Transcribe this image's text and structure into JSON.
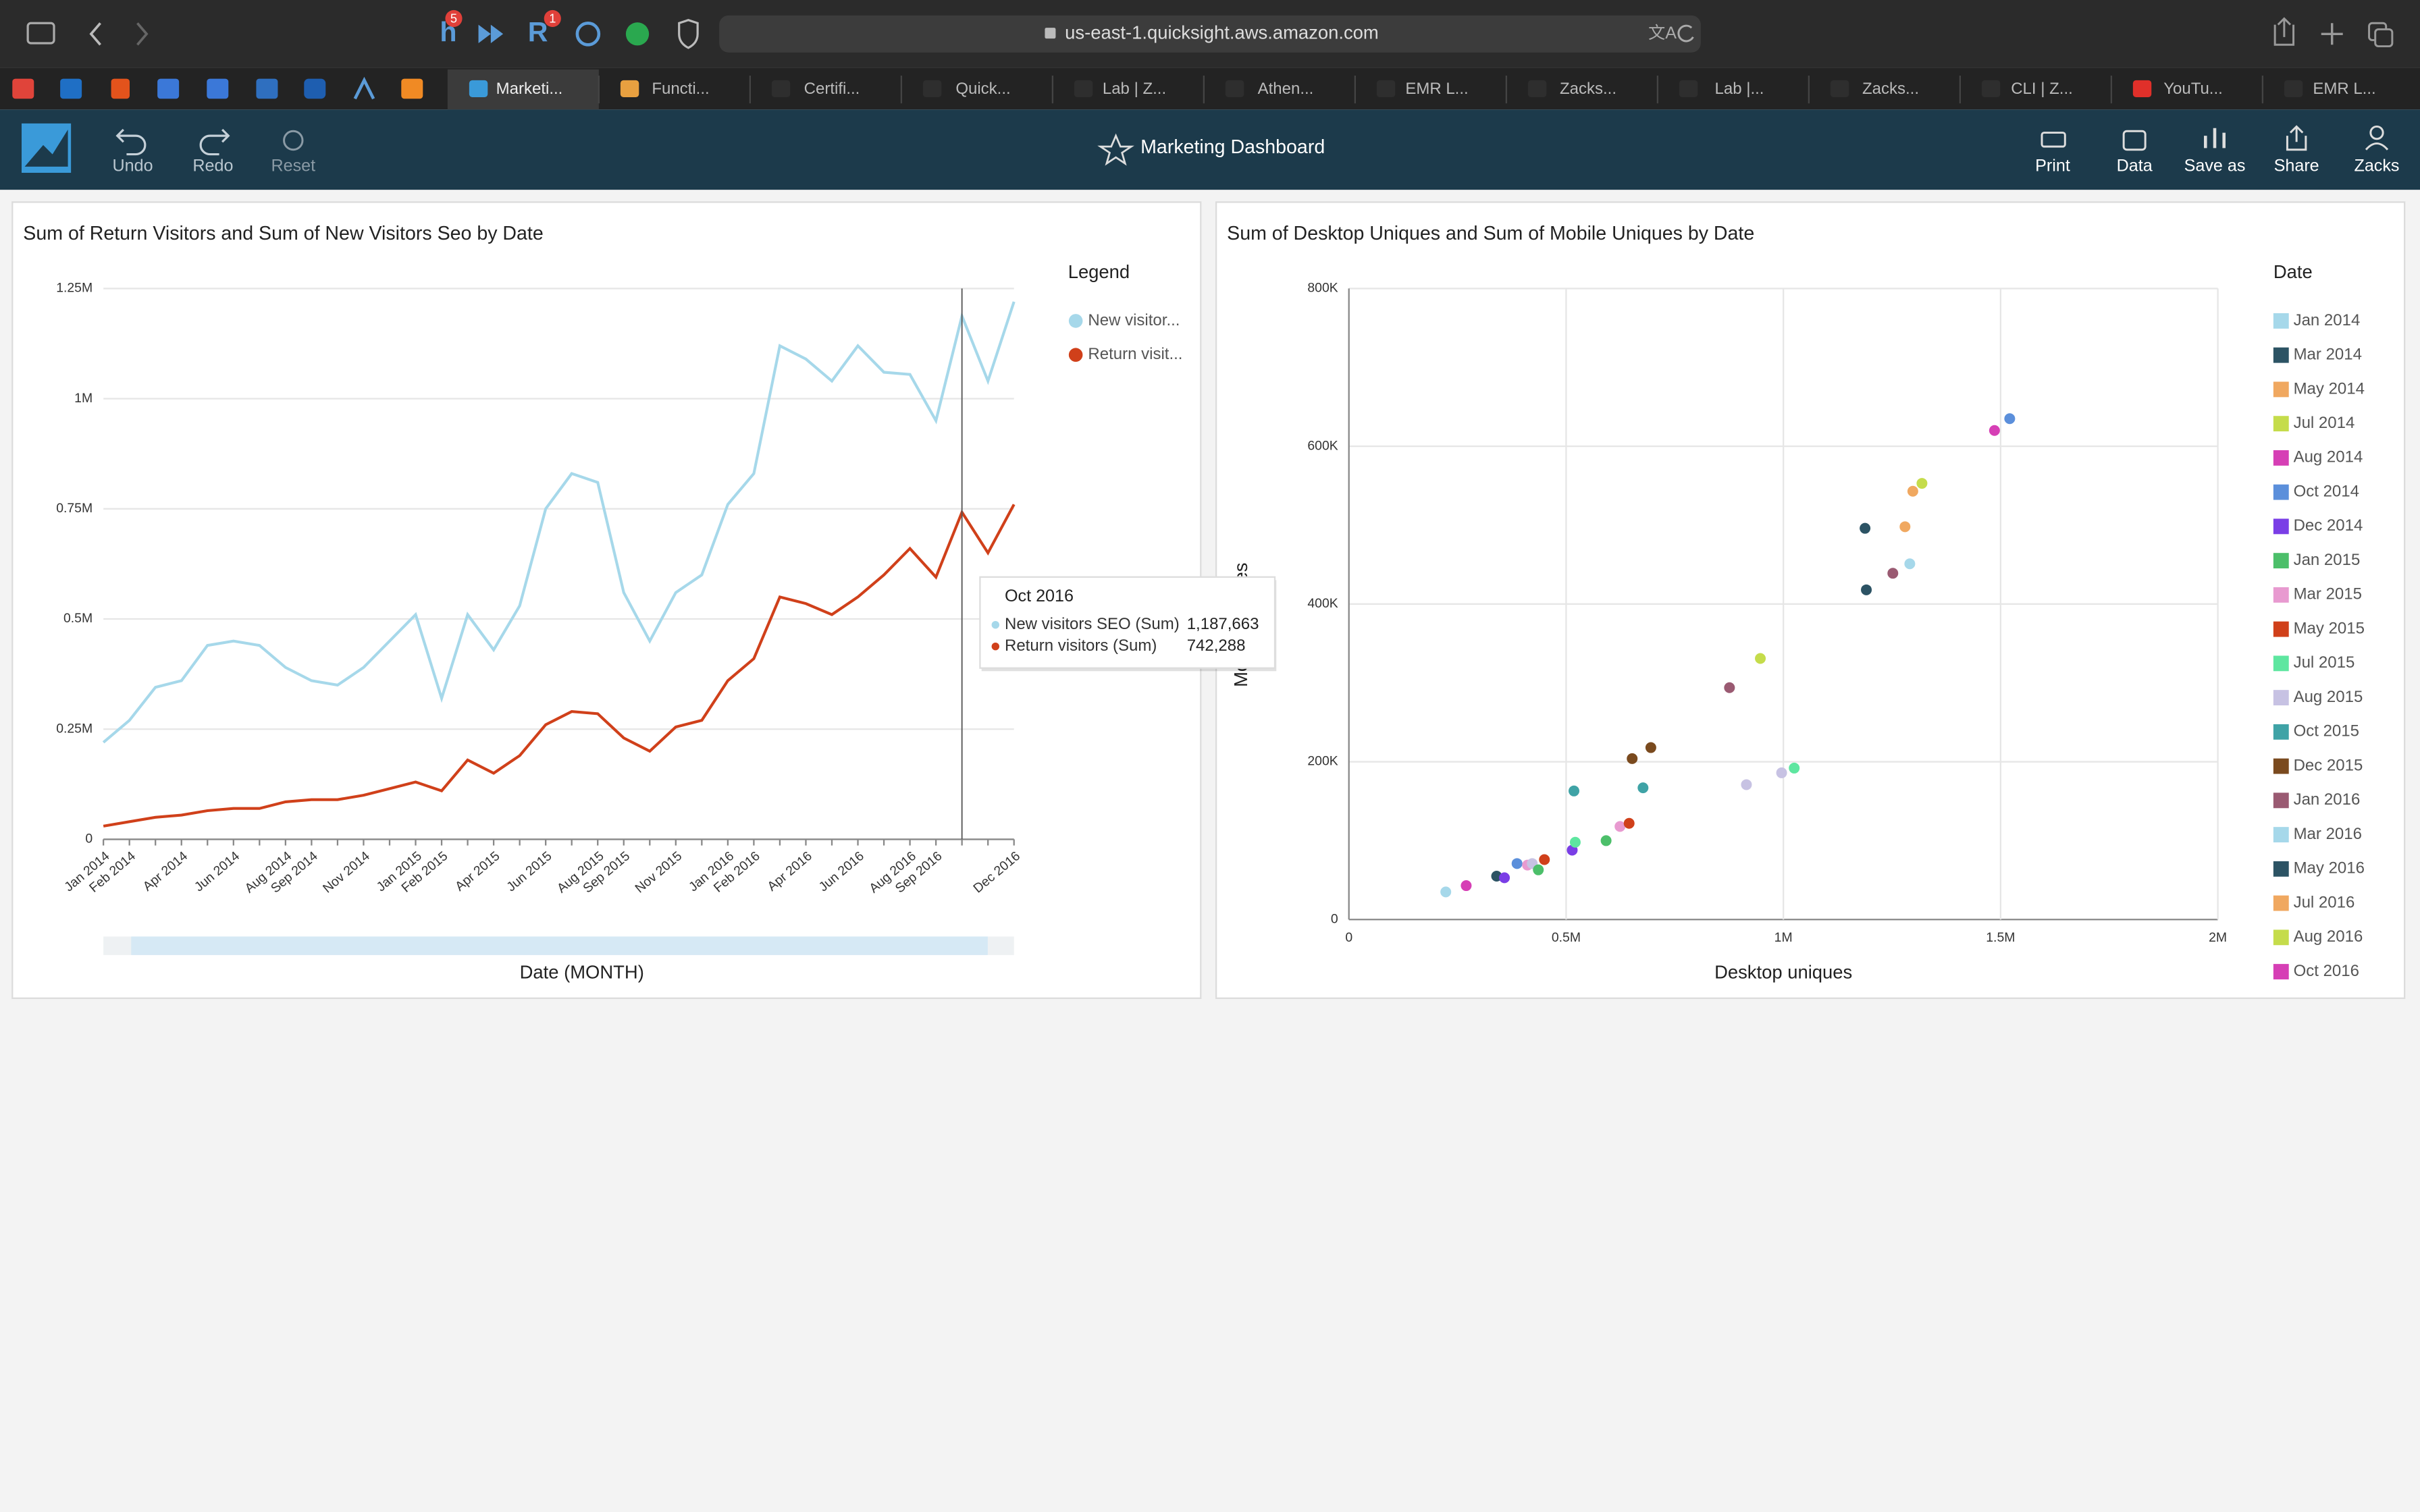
{
  "browser": {
    "url": "us-east-1.quicksight.aws.amazon.com",
    "badges": [
      "5",
      "1"
    ],
    "tabs": [
      "Marketi...",
      "Functi...",
      "Certifi...",
      "Quick...",
      "Lab | Z...",
      "Athen...",
      "EMR L...",
      "Zacks...",
      "Lab |...",
      "Zacks...",
      "CLI | Z...",
      "YouTu...",
      "EMR L..."
    ]
  },
  "toolbar": {
    "actions_left": [
      "Undo",
      "Redo",
      "Reset"
    ],
    "title": "Marketing Dashboard",
    "actions_right": [
      "Print",
      "Data",
      "Save as",
      "Share",
      "Zacks"
    ]
  },
  "chart_data": [
    {
      "type": "line",
      "title": "Sum of Return Visitors and Sum of New Visitors Seo by Date",
      "x_label": "Date (MONTH)",
      "categories": [
        "Jan 2014",
        "Feb 2014",
        null,
        "Apr 2014",
        null,
        "Jun 2014",
        null,
        "Aug 2014",
        "Sep 2014",
        null,
        "Nov 2014",
        null,
        "Jan 2015",
        "Feb 2015",
        null,
        "Apr 2015",
        null,
        "Jun 2015",
        null,
        "Aug 2015",
        "Sep 2015",
        null,
        "Nov 2015",
        null,
        "Jan 2016",
        "Feb 2016",
        null,
        "Apr 2016",
        null,
        "Jun 2016",
        null,
        "Aug 2016",
        "Sep 2016",
        null,
        null,
        "Dec 2016"
      ],
      "series": [
        {
          "name": "New visitor...",
          "color": "#a6d8ea",
          "values": [
            220000,
            270000,
            345000,
            360000,
            440000,
            450000,
            440000,
            390000,
            360000,
            350000,
            390000,
            450000,
            510000,
            320000,
            510000,
            430000,
            530000,
            750000,
            830000,
            810000,
            560000,
            450000,
            560000,
            600000,
            760000,
            830000,
            1120000,
            1090000,
            1040000,
            1120000,
            1060000,
            1055000,
            950000,
            1187663,
            1040000,
            1220000
          ]
        },
        {
          "name": "Return visit...",
          "color": "#d0401a",
          "values": [
            30000,
            40000,
            50000,
            55000,
            65000,
            70000,
            70000,
            85000,
            90000,
            90000,
            100000,
            115000,
            130000,
            110000,
            180000,
            150000,
            190000,
            260000,
            290000,
            285000,
            230000,
            200000,
            255000,
            270000,
            360000,
            410000,
            550000,
            535000,
            510000,
            550000,
            600000,
            660000,
            595000,
            742288,
            650000,
            760000
          ]
        }
      ],
      "ylim": [
        0,
        1250000
      ],
      "yticks": [
        0,
        {
          "value": 250000,
          "label": "0.25M"
        },
        {
          "value": 500000,
          "label": "0.5M"
        },
        {
          "value": 750000,
          "label": "0.75M"
        },
        {
          "value": 1000000,
          "label": "1M"
        },
        {
          "value": 1250000,
          "label": "1.25M"
        }
      ],
      "grid": true,
      "legend": {
        "title": "Legend",
        "position": "right"
      },
      "tooltip": {
        "title": "Oct 2016",
        "rows": [
          {
            "name": "New visitors SEO (Sum)",
            "label": "1,187,663",
            "color": "#a6d8ea"
          },
          {
            "name": "Return visitors (Sum)",
            "label": "742,288",
            "color": "#d0401a"
          }
        ]
      }
    },
    {
      "type": "scatter",
      "title": "Sum of Desktop Uniques and Sum of Mobile Uniques by Date",
      "x_label": "Desktop uniques",
      "y_label": "Mobile uniques",
      "x": [
        223000,
        270000,
        340000,
        358000,
        387000,
        411000,
        422000,
        436000,
        450000,
        514000,
        521000,
        518000,
        592000,
        624000,
        645000,
        652000,
        677000,
        695000,
        876000,
        915000,
        947000,
        996000,
        1025000,
        1188000,
        1191000,
        1252000,
        1280000,
        1291000,
        1298000,
        1319000,
        1486000,
        1521000
      ],
      "y": [
        35000,
        43000,
        55000,
        53000,
        71000,
        69000,
        71000,
        63000,
        76000,
        88000,
        98000,
        163000,
        100000,
        118000,
        122000,
        204000,
        167000,
        218000,
        294000,
        171000,
        331000,
        186000,
        192000,
        496000,
        418000,
        439000,
        498000,
        451000,
        543000,
        553000,
        620000,
        635000
      ],
      "colors": [
        "#a6d8ea",
        "#d63fb5",
        "#2c5364",
        "#7a3ee6",
        "#5b8fdb",
        "#e89ad0",
        "#c7c2e3",
        "#4cbf6a",
        "#d0401a",
        "#7a3ee6",
        "#5ee6a0",
        "#3fa3a6",
        "#4cbf6a",
        "#e89ad0",
        "#d0401a",
        "#7a4a1e",
        "#3fa3a6",
        "#7a4a1e",
        "#9a5a72",
        "#c7c2e3",
        "#c5dc4b",
        "#c7c2e3",
        "#5ee6a0",
        "#2c5364",
        "#2c5364",
        "#9a5a72",
        "#f0a860",
        "#a6d8ea",
        "#f0a860",
        "#c5dc4b",
        "#d63fb5",
        "#5b8fdb"
      ],
      "xlim": [
        0,
        2000000
      ],
      "xticks": [
        0,
        {
          "value": 500000,
          "label": "0.5M"
        },
        {
          "value": 1000000,
          "label": "1M"
        },
        {
          "value": 1500000,
          "label": "1.5M"
        },
        {
          "value": 2000000,
          "label": "2M"
        }
      ],
      "ylim": [
        0,
        800000
      ],
      "yticks": [
        0,
        {
          "value": 200000,
          "label": "200K"
        },
        {
          "value": 400000,
          "label": "400K"
        },
        {
          "value": 600000,
          "label": "600K"
        },
        {
          "value": 800000,
          "label": "800K"
        }
      ],
      "grid": true,
      "legend": {
        "title": "Date",
        "position": "right",
        "items": [
          {
            "name": "Jan 2014",
            "color": "#a6d8ea"
          },
          {
            "name": "Mar 2014",
            "color": "#2c5364"
          },
          {
            "name": "May 2014",
            "color": "#f0a860"
          },
          {
            "name": "Jul 2014",
            "color": "#c5dc4b"
          },
          {
            "name": "Aug 2014",
            "color": "#d63fb5"
          },
          {
            "name": "Oct 2014",
            "color": "#5b8fdb"
          },
          {
            "name": "Dec 2014",
            "color": "#7a3ee6"
          },
          {
            "name": "Jan 2015",
            "color": "#4cbf6a"
          },
          {
            "name": "Mar 2015",
            "color": "#e89ad0"
          },
          {
            "name": "May 2015",
            "color": "#d0401a"
          },
          {
            "name": "Jul 2015",
            "color": "#5ee6a0"
          },
          {
            "name": "Aug 2015",
            "color": "#c7c2e3"
          },
          {
            "name": "Oct 2015",
            "color": "#3fa3a6"
          },
          {
            "name": "Dec 2015",
            "color": "#7a4a1e"
          },
          {
            "name": "Jan 2016",
            "color": "#9a5a72"
          },
          {
            "name": "Mar 2016",
            "color": "#a6d8ea"
          },
          {
            "name": "May 2016",
            "color": "#2c5364"
          },
          {
            "name": "Jul 2016",
            "color": "#f0a860"
          },
          {
            "name": "Aug 2016",
            "color": "#c5dc4b"
          },
          {
            "name": "Oct 2016",
            "color": "#d63fb5"
          }
        ]
      }
    }
  ]
}
